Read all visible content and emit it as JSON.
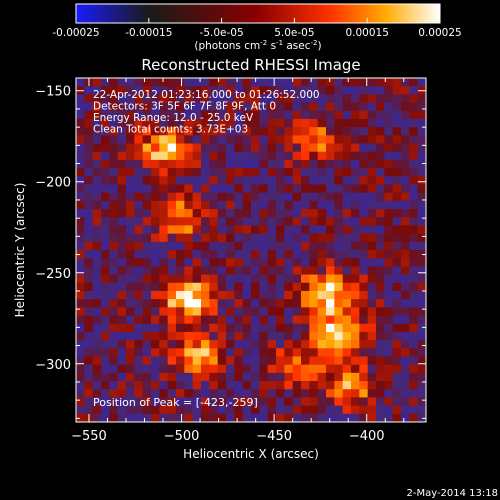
{
  "colorbar": {
    "tick_labels": [
      "-0.00025",
      "-0.00015",
      "-5.0e-05",
      "5.0e-05",
      "0.00015",
      "0.00025"
    ],
    "tick_values": [
      -0.00025,
      -0.00015,
      -5e-05,
      5e-05,
      0.00015,
      0.00025
    ],
    "unit_label": "(photons cm",
    "unit_exp1": "-2",
    "unit_mid": " s",
    "unit_exp2": "-1",
    "unit_mid2": " asec",
    "unit_exp3": "-2",
    "unit_end": ")",
    "colors": [
      "#1a1aff",
      "#1a1a1a",
      "#8b0000",
      "#ff3300",
      "#ffaa00",
      "#ffffff"
    ]
  },
  "chart_data": {
    "type": "heatmap",
    "title": "Reconstructed RHESSI Image",
    "xlabel": "Heliocentric X (arcsec)",
    "ylabel": "Heliocentric Y (arcsec)",
    "xlim": [
      -557,
      -368
    ],
    "ylim": [
      -332,
      -143
    ],
    "x_ticks": [
      -550,
      -500,
      -450,
      -400
    ],
    "y_ticks": [
      -150,
      -200,
      -250,
      -300
    ],
    "x_tick_labels": [
      "−550",
      "−500",
      "−450",
      "−400"
    ],
    "y_tick_labels": [
      "−150",
      "−200",
      "−250",
      "−300"
    ],
    "clim": [
      -0.00025,
      0.00025
    ],
    "sources": [
      {
        "x": -512,
        "y": -180,
        "peak": 0.00022
      },
      {
        "x": -503,
        "y": -218,
        "peak": 0.00015
      },
      {
        "x": -498,
        "y": -262,
        "peak": 0.00025
      },
      {
        "x": -495,
        "y": -292,
        "peak": 0.00018
      },
      {
        "x": -423,
        "y": -259,
        "peak": 0.00025
      },
      {
        "x": -418,
        "y": -282,
        "peak": 0.00022
      },
      {
        "x": -412,
        "y": -310,
        "peak": 0.00016
      },
      {
        "x": -430,
        "y": -175,
        "peak": 0.00014
      },
      {
        "x": -440,
        "y": -300,
        "peak": 0.00012
      }
    ],
    "info_lines": [
      "22-Apr-2012 01:23:16.000 to 01:26:52.000",
      "Detectors: 3F 5F 6F 7F 8F 9F, Att 0",
      "Energy Range: 12.0 - 25.0 keV",
      "Clean     Total counts: 3.73E+03"
    ],
    "peak_label": "Position of Peak = [-423,-259]"
  },
  "footer": {
    "timestamp": "2-May-2014 13:18"
  }
}
